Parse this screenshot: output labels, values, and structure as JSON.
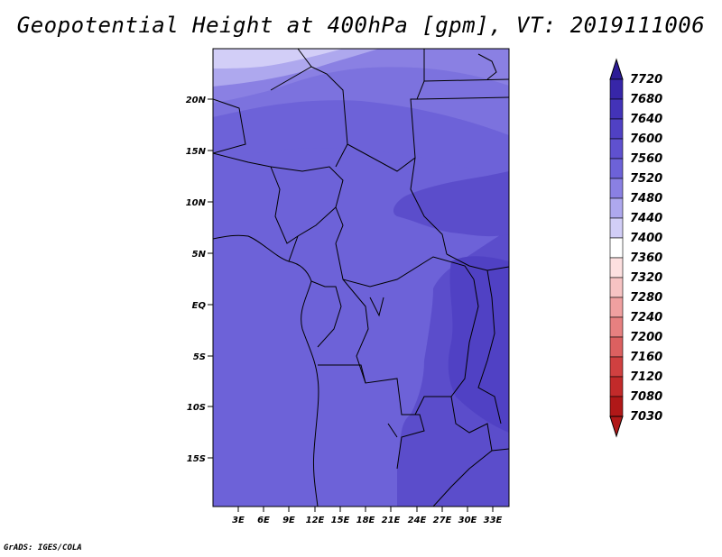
{
  "title": "Geopotential Height at 400hPa [gpm], VT: 2019111006",
  "credit": "GrADS: IGES/COLA",
  "map": {
    "lat_labels": [
      "20N",
      "15N",
      "10N",
      "5N",
      "EQ",
      "5S",
      "10S",
      "15S"
    ],
    "lon_labels": [
      "3E",
      "6E",
      "9E",
      "12E",
      "15E",
      "18E",
      "21E",
      "24E",
      "27E",
      "30E",
      "33E"
    ]
  },
  "colorbar": {
    "labels": [
      "7720",
      "7680",
      "7640",
      "7600",
      "7560",
      "7520",
      "7480",
      "7440",
      "7400",
      "7360",
      "7320",
      "7280",
      "7240",
      "7200",
      "7160",
      "7120",
      "7080",
      "7030"
    ],
    "colors": [
      "#2d1c96",
      "#3726a8",
      "#4333b8",
      "#5041c4",
      "#5f51cf",
      "#6d62d8",
      "#8a80e3",
      "#aea8ee",
      "#d2cef7",
      "#ffffff",
      "#fde0e0",
      "#f7c3c3",
      "#f0a0a0",
      "#e78080",
      "#dc6060",
      "#d04040",
      "#c22a2a",
      "#b01818"
    ]
  }
}
